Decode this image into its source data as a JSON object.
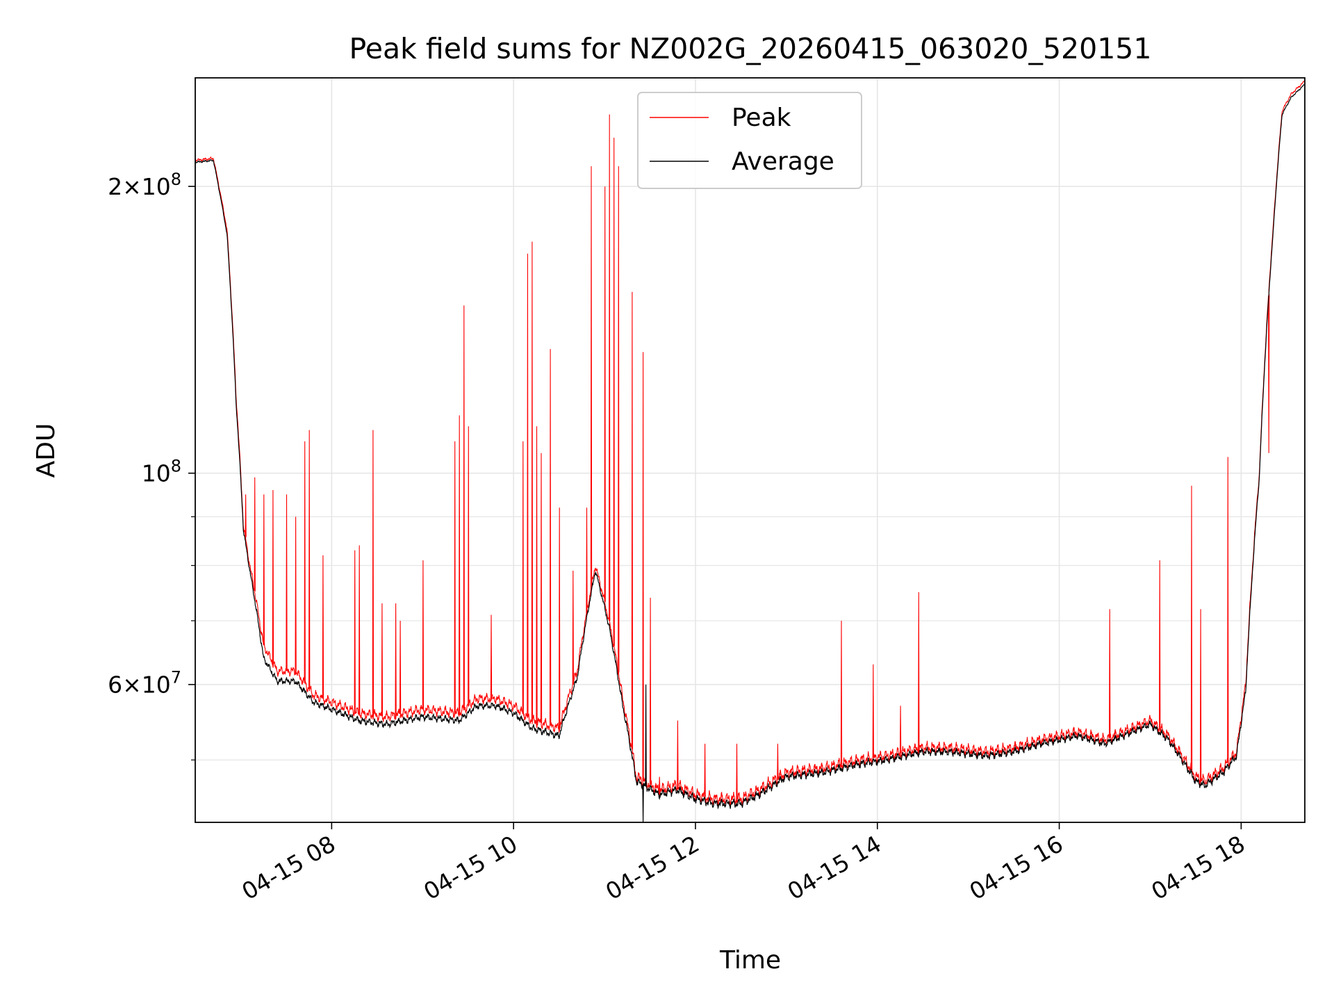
{
  "chart_data": {
    "type": "line",
    "title": "Peak field sums for NZ002G_20260415_063020_520151",
    "xlabel": "Time",
    "ylabel": "ADU",
    "yscale": "log",
    "ylim": [
      43000000,
      260000000
    ],
    "xlim_hours": [
      6.5,
      18.7
    ],
    "grid": true,
    "legend_position": "top-center",
    "colors": {
      "peak": "#ff0000",
      "average": "#000000",
      "grid": "#e6e6e6"
    },
    "x_ticks": [
      {
        "hour": 8,
        "label": "04-15 08"
      },
      {
        "hour": 10,
        "label": "04-15 10"
      },
      {
        "hour": 12,
        "label": "04-15 12"
      },
      {
        "hour": 14,
        "label": "04-15 14"
      },
      {
        "hour": 16,
        "label": "04-15 16"
      },
      {
        "hour": 18,
        "label": "04-15 18"
      }
    ],
    "y_major_ticks": [
      {
        "value": 60000000,
        "mant": "6",
        "exp": "7"
      },
      {
        "value": 100000000,
        "mant": "",
        "exp": "8"
      },
      {
        "value": 200000000,
        "mant": "2",
        "exp": "8"
      }
    ],
    "y_minor_ticks": [
      50000000,
      70000000,
      80000000,
      90000000
    ],
    "series": [
      {
        "name": "Peak",
        "key": "peak",
        "baseline": [
          [
            6.5,
            213
          ],
          [
            6.7,
            214
          ],
          [
            6.85,
            180
          ],
          [
            6.95,
            120
          ],
          [
            7.03,
            88
          ],
          [
            7.1,
            80
          ],
          [
            7.25,
            66
          ],
          [
            7.4,
            62
          ],
          [
            7.6,
            62
          ],
          [
            7.8,
            58.5
          ],
          [
            8.0,
            57.5
          ],
          [
            8.3,
            56
          ],
          [
            8.6,
            55.5
          ],
          [
            9.0,
            56.5
          ],
          [
            9.4,
            56
          ],
          [
            9.6,
            58
          ],
          [
            9.8,
            58
          ],
          [
            10.0,
            57
          ],
          [
            10.2,
            55
          ],
          [
            10.5,
            54
          ],
          [
            10.7,
            62
          ],
          [
            10.9,
            80
          ],
          [
            11.05,
            70
          ],
          [
            11.2,
            58
          ],
          [
            11.35,
            48
          ],
          [
            11.6,
            46.5
          ],
          [
            11.8,
            47
          ],
          [
            12.0,
            46
          ],
          [
            12.2,
            45.5
          ],
          [
            12.5,
            45.5
          ],
          [
            12.7,
            46.5
          ],
          [
            13.0,
            48.5
          ],
          [
            13.4,
            49
          ],
          [
            13.8,
            50
          ],
          [
            14.1,
            50.5
          ],
          [
            14.5,
            51.5
          ],
          [
            14.8,
            51.5
          ],
          [
            15.2,
            51
          ],
          [
            15.5,
            51.5
          ],
          [
            15.8,
            52.5
          ],
          [
            16.2,
            53.5
          ],
          [
            16.5,
            52.5
          ],
          [
            16.8,
            54
          ],
          [
            17.0,
            55
          ],
          [
            17.2,
            53
          ],
          [
            17.5,
            48
          ],
          [
            17.6,
            47.5
          ],
          [
            17.8,
            49
          ],
          [
            17.95,
            51
          ],
          [
            18.05,
            60
          ],
          [
            18.2,
            100
          ],
          [
            18.35,
            180
          ],
          [
            18.45,
            240
          ],
          [
            18.55,
            250
          ],
          [
            18.7,
            258
          ]
        ],
        "spikes": [
          [
            7.05,
            95
          ],
          [
            7.15,
            99
          ],
          [
            7.25,
            95
          ],
          [
            7.35,
            96
          ],
          [
            7.5,
            95
          ],
          [
            7.6,
            90
          ],
          [
            7.7,
            108
          ],
          [
            7.75,
            111
          ],
          [
            7.9,
            82
          ],
          [
            8.25,
            83
          ],
          [
            8.3,
            84
          ],
          [
            8.45,
            111
          ],
          [
            8.55,
            73
          ],
          [
            8.7,
            73
          ],
          [
            8.75,
            70
          ],
          [
            9.0,
            81
          ],
          [
            9.35,
            108
          ],
          [
            9.4,
            115
          ],
          [
            9.45,
            150
          ],
          [
            9.5,
            112
          ],
          [
            9.75,
            71
          ],
          [
            10.1,
            108
          ],
          [
            10.15,
            170
          ],
          [
            10.2,
            175
          ],
          [
            10.25,
            112
          ],
          [
            10.3,
            105
          ],
          [
            10.4,
            135
          ],
          [
            10.5,
            92
          ],
          [
            10.65,
            79
          ],
          [
            10.8,
            92
          ],
          [
            10.85,
            210
          ],
          [
            11.0,
            200
          ],
          [
            11.05,
            238
          ],
          [
            11.1,
            225
          ],
          [
            11.15,
            210
          ],
          [
            11.3,
            155
          ],
          [
            11.42,
            134
          ],
          [
            11.5,
            74
          ],
          [
            11.6,
            48
          ],
          [
            11.8,
            55
          ],
          [
            12.1,
            52
          ],
          [
            12.45,
            52
          ],
          [
            12.9,
            52
          ],
          [
            13.6,
            70
          ],
          [
            13.95,
            63
          ],
          [
            14.25,
            57
          ],
          [
            14.45,
            75
          ],
          [
            16.55,
            72
          ],
          [
            17.1,
            81
          ],
          [
            17.45,
            97
          ],
          [
            17.55,
            72
          ],
          [
            17.85,
            104
          ],
          [
            18.3,
            105
          ]
        ]
      },
      {
        "name": "Average",
        "key": "average",
        "baseline": [
          [
            6.5,
            212
          ],
          [
            6.7,
            213
          ],
          [
            6.85,
            178
          ],
          [
            6.95,
            118
          ],
          [
            7.03,
            87
          ],
          [
            7.1,
            79
          ],
          [
            7.25,
            64
          ],
          [
            7.4,
            60.5
          ],
          [
            7.6,
            60.5
          ],
          [
            7.8,
            57.5
          ],
          [
            8.0,
            56.5
          ],
          [
            8.3,
            55
          ],
          [
            8.6,
            54.5
          ],
          [
            9.0,
            55.5
          ],
          [
            9.4,
            55
          ],
          [
            9.6,
            57
          ],
          [
            9.8,
            57
          ],
          [
            10.0,
            56
          ],
          [
            10.2,
            54
          ],
          [
            10.5,
            53
          ],
          [
            10.7,
            61
          ],
          [
            10.9,
            79
          ],
          [
            11.05,
            69
          ],
          [
            11.2,
            57
          ],
          [
            11.35,
            47.5
          ],
          [
            11.6,
            46
          ],
          [
            11.8,
            46.5
          ],
          [
            12.0,
            45.5
          ],
          [
            12.2,
            45
          ],
          [
            12.5,
            45
          ],
          [
            12.7,
            46
          ],
          [
            13.0,
            48
          ],
          [
            13.4,
            48.5
          ],
          [
            13.8,
            49.5
          ],
          [
            14.1,
            50
          ],
          [
            14.5,
            51
          ],
          [
            14.8,
            51
          ],
          [
            15.2,
            50.5
          ],
          [
            15.5,
            51
          ],
          [
            15.8,
            52
          ],
          [
            16.2,
            53
          ],
          [
            16.5,
            52
          ],
          [
            16.8,
            53.5
          ],
          [
            17.0,
            54.5
          ],
          [
            17.2,
            52.5
          ],
          [
            17.5,
            47.5
          ],
          [
            17.6,
            47
          ],
          [
            17.8,
            48.5
          ],
          [
            17.95,
            50.5
          ],
          [
            18.05,
            59
          ],
          [
            18.2,
            99
          ],
          [
            18.35,
            178
          ],
          [
            18.45,
            238
          ],
          [
            18.55,
            248
          ],
          [
            18.7,
            256
          ]
        ],
        "spikes": [
          [
            11.42,
            41
          ],
          [
            11.45,
            60
          ]
        ]
      }
    ]
  }
}
